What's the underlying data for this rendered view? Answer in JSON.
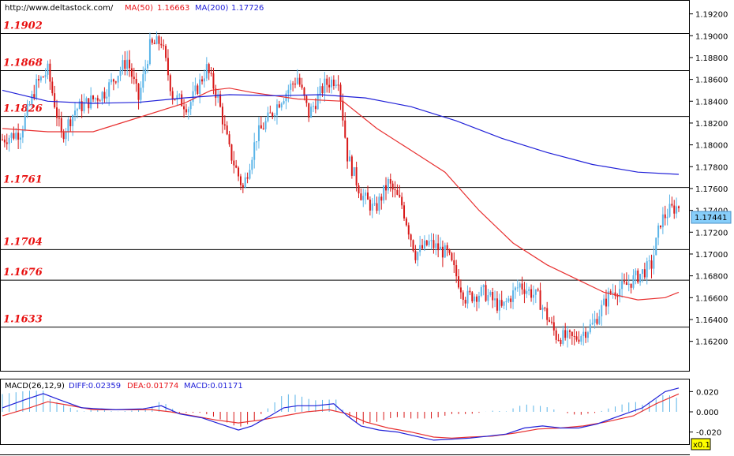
{
  "header": {
    "url": "http://www.deltastock.com/",
    "ma50_label": "MA(50)",
    "ma50_value": "1.16663",
    "ma200_label": "MA(200)",
    "ma200_value": "1.17726"
  },
  "macd_header": {
    "title": "MACD(26,12,9)",
    "diff": "DIFF:0.02359",
    "dea": "DEA:0.01774",
    "macd": "MACD:0.01171"
  },
  "current_price": "1.17441",
  "zoom_label": "x0.1",
  "colors": {
    "up_candle": "#5ab4e8",
    "down_candle": "#d81818",
    "ma50": "#e83030",
    "ma200": "#2020d8",
    "level_text": "#e81010",
    "current_box": "#87cefa"
  },
  "chart_data": [
    {
      "type": "candlestick",
      "y_ticks": [
        "1.19200",
        "1.19000",
        "1.18800",
        "1.18600",
        "1.18400",
        "1.18200",
        "1.18000",
        "1.17800",
        "1.17600",
        "1.17400",
        "1.17200",
        "1.17000",
        "1.16800",
        "1.16600",
        "1.16400",
        "1.16200"
      ],
      "ylim": [
        1.1593,
        1.1932
      ],
      "levels": [
        "1.1902",
        "1.1868",
        "1.1826",
        "1.1761",
        "1.1704",
        "1.1676",
        "1.1633"
      ],
      "keypoints": [
        [
          0,
          1.1805
        ],
        [
          8,
          1.1812
        ],
        [
          15,
          1.1855
        ],
        [
          20,
          1.1868
        ],
        [
          26,
          1.1808
        ],
        [
          32,
          1.1832
        ],
        [
          45,
          1.1848
        ],
        [
          55,
          1.1878
        ],
        [
          60,
          1.1842
        ],
        [
          65,
          1.189
        ],
        [
          70,
          1.1895
        ],
        [
          75,
          1.1845
        ],
        [
          82,
          1.1835
        ],
        [
          90,
          1.187
        ],
        [
          95,
          1.1843
        ],
        [
          100,
          1.1795
        ],
        [
          106,
          1.176
        ],
        [
          112,
          1.1808
        ],
        [
          116,
          1.182
        ],
        [
          122,
          1.184
        ],
        [
          130,
          1.1862
        ],
        [
          135,
          1.1828
        ],
        [
          142,
          1.1855
        ],
        [
          148,
          1.1862
        ],
        [
          152,
          1.179
        ],
        [
          158,
          1.1755
        ],
        [
          164,
          1.174
        ],
        [
          170,
          1.1765
        ],
        [
          176,
          1.1745
        ],
        [
          182,
          1.17
        ],
        [
          188,
          1.171
        ],
        [
          196,
          1.17
        ],
        [
          204,
          1.166
        ],
        [
          212,
          1.1665
        ],
        [
          220,
          1.165
        ],
        [
          228,
          1.1672
        ],
        [
          236,
          1.166
        ],
        [
          244,
          1.1625
        ],
        [
          252,
          1.1622
        ],
        [
          260,
          1.1635
        ],
        [
          268,
          1.1665
        ],
        [
          274,
          1.167
        ],
        [
          280,
          1.168
        ],
        [
          286,
          1.169
        ],
        [
          290,
          1.173
        ],
        [
          294,
          1.174
        ],
        [
          298,
          1.1744
        ]
      ],
      "ma50": [
        [
          0,
          1.1815
        ],
        [
          20,
          1.1812
        ],
        [
          40,
          1.1812
        ],
        [
          60,
          1.1825
        ],
        [
          80,
          1.1838
        ],
        [
          92,
          1.185
        ],
        [
          100,
          1.1852
        ],
        [
          110,
          1.1848
        ],
        [
          130,
          1.1842
        ],
        [
          150,
          1.184
        ],
        [
          165,
          1.1815
        ],
        [
          180,
          1.1795
        ],
        [
          195,
          1.1775
        ],
        [
          210,
          1.174
        ],
        [
          225,
          1.171
        ],
        [
          240,
          1.169
        ],
        [
          255,
          1.1675
        ],
        [
          265,
          1.1665
        ],
        [
          280,
          1.1658
        ],
        [
          292,
          1.166
        ],
        [
          298,
          1.1665
        ]
      ],
      "ma200": [
        [
          0,
          1.185
        ],
        [
          20,
          1.184
        ],
        [
          40,
          1.1838
        ],
        [
          60,
          1.1839
        ],
        [
          80,
          1.1843
        ],
        [
          100,
          1.1846
        ],
        [
          120,
          1.1845
        ],
        [
          140,
          1.1846
        ],
        [
          160,
          1.1843
        ],
        [
          180,
          1.1835
        ],
        [
          200,
          1.1822
        ],
        [
          220,
          1.1806
        ],
        [
          240,
          1.1793
        ],
        [
          260,
          1.1782
        ],
        [
          280,
          1.1775
        ],
        [
          298,
          1.1773
        ]
      ]
    },
    {
      "type": "macd",
      "y_ticks": [
        "0.020",
        "0.000",
        "-0.020"
      ],
      "ylim": [
        -0.032,
        0.032
      ],
      "diff": [
        [
          0,
          0.004
        ],
        [
          10,
          0.012
        ],
        [
          18,
          0.018
        ],
        [
          25,
          0.012
        ],
        [
          35,
          0.004
        ],
        [
          50,
          0.002
        ],
        [
          62,
          0.003
        ],
        [
          70,
          0.006
        ],
        [
          78,
          -0.002
        ],
        [
          88,
          -0.006
        ],
        [
          96,
          -0.012
        ],
        [
          104,
          -0.018
        ],
        [
          110,
          -0.014
        ],
        [
          118,
          -0.004
        ],
        [
          124,
          0.004
        ],
        [
          130,
          0.006
        ],
        [
          138,
          0.006
        ],
        [
          146,
          0.008
        ],
        [
          152,
          -0.004
        ],
        [
          158,
          -0.014
        ],
        [
          166,
          -0.018
        ],
        [
          174,
          -0.02
        ],
        [
          182,
          -0.024
        ],
        [
          190,
          -0.028
        ],
        [
          198,
          -0.027
        ],
        [
          206,
          -0.026
        ],
        [
          214,
          -0.024
        ],
        [
          222,
          -0.022
        ],
        [
          230,
          -0.016
        ],
        [
          238,
          -0.014
        ],
        [
          246,
          -0.016
        ],
        [
          254,
          -0.016
        ],
        [
          262,
          -0.012
        ],
        [
          272,
          -0.004
        ],
        [
          282,
          0.004
        ],
        [
          292,
          0.02
        ],
        [
          298,
          0.0236
        ]
      ],
      "dea": [
        [
          0,
          -0.004
        ],
        [
          12,
          0.004
        ],
        [
          20,
          0.01
        ],
        [
          28,
          0.007
        ],
        [
          40,
          0.002
        ],
        [
          55,
          0.002
        ],
        [
          66,
          0.002
        ],
        [
          74,
          0.0
        ],
        [
          84,
          -0.004
        ],
        [
          94,
          -0.008
        ],
        [
          104,
          -0.011
        ],
        [
          114,
          -0.008
        ],
        [
          124,
          -0.004
        ],
        [
          134,
          0.0
        ],
        [
          144,
          0.002
        ],
        [
          152,
          -0.002
        ],
        [
          160,
          -0.01
        ],
        [
          170,
          -0.016
        ],
        [
          180,
          -0.02
        ],
        [
          190,
          -0.025
        ],
        [
          198,
          -0.026
        ],
        [
          206,
          -0.025
        ],
        [
          216,
          -0.024
        ],
        [
          226,
          -0.021
        ],
        [
          236,
          -0.017
        ],
        [
          246,
          -0.016
        ],
        [
          256,
          -0.014
        ],
        [
          266,
          -0.01
        ],
        [
          278,
          -0.004
        ],
        [
          288,
          0.008
        ],
        [
          298,
          0.0177
        ]
      ]
    }
  ]
}
